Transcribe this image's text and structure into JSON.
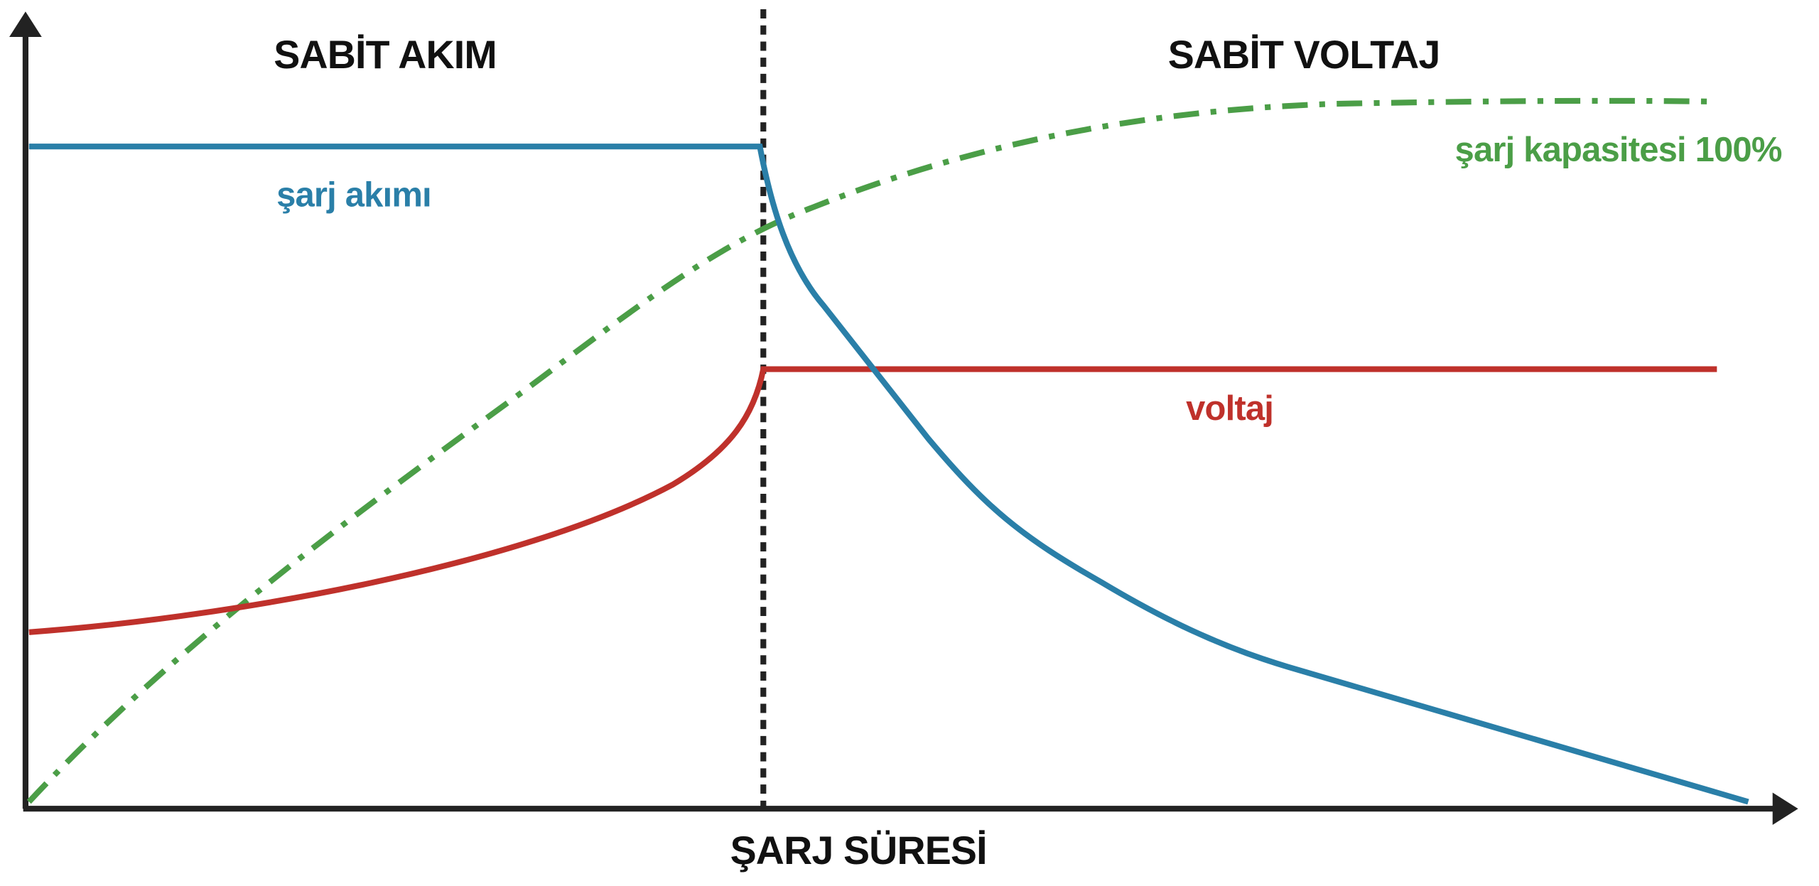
{
  "sections": {
    "left": "SABİT AKIM",
    "right": "SABİT VOLTAJ"
  },
  "curves": {
    "current": "şarj akımı",
    "voltage": "voltaj",
    "capacity": "şarj kapasitesi 100%"
  },
  "x_axis": {
    "label": "ŞARJ SÜRESİ"
  }
}
